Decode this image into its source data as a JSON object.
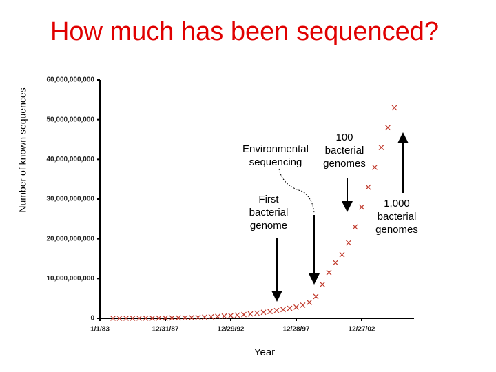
{
  "chart_data": {
    "type": "scatter",
    "title": "How much has been sequenced?",
    "y_label": "Number of known sequences",
    "x_label": "Year",
    "series": [
      {
        "name": "sequences",
        "color": "#c0392b",
        "x": [
          1984,
          1984.5,
          1985,
          1985.5,
          1986,
          1986.5,
          1987,
          1987.5,
          1988,
          1988.5,
          1989,
          1989.5,
          1990,
          1990.5,
          1991,
          1991.5,
          1992,
          1992.5,
          1993,
          1993.5,
          1994,
          1994.5,
          1995,
          1995.5,
          1996,
          1996.5,
          1997,
          1997.5,
          1998,
          1998.5,
          1999,
          1999.5,
          2000,
          2000.5,
          2001,
          2001.5,
          2002,
          2002.5,
          2003,
          2003.5,
          2004,
          2004.5,
          2005,
          2005.5
        ],
        "values": [
          5000000,
          7000000,
          10000000,
          15000000,
          20000000,
          30000000,
          40000000,
          50000000,
          70000000,
          90000000,
          120000000,
          150000000,
          190000000,
          240000000,
          300000000,
          380000000,
          460000000,
          560000000,
          680000000,
          800000000,
          950000000,
          1100000000,
          1300000000,
          1500000000,
          1700000000,
          1950000000,
          2200000000,
          2500000000,
          2800000000,
          3300000000,
          4000000000,
          5500000000,
          8500000000,
          11500000000,
          14000000000,
          16000000000,
          19000000000,
          23000000000,
          28000000000,
          33000000000,
          38000000000,
          43000000000,
          48000000000,
          53000000000
        ]
      }
    ],
    "xlim": [
      1983,
      2007
    ],
    "xticks": [
      {
        "value": 1983,
        "label": "1/1/83"
      },
      {
        "value": 1988,
        "label": "12/31/87"
      },
      {
        "value": 1993,
        "label": "12/29/92"
      },
      {
        "value": 1998,
        "label": "12/28/97"
      },
      {
        "value": 2003,
        "label": "12/27/02"
      }
    ],
    "ylim": [
      0,
      60000000000
    ],
    "yticks": [
      0,
      {
        "value": 10000000000,
        "label": "10,000,000,000"
      },
      {
        "value": 20000000000,
        "label": "20,000,000,000"
      },
      {
        "value": 30000000000,
        "label": "30,000,000,000"
      },
      {
        "value": 40000000000,
        "label": "40,000,000,000"
      },
      {
        "value": 50000000000,
        "label": "50,000,000,000"
      },
      {
        "value": 60000000000,
        "label": "60,000,000,000"
      }
    ],
    "annotations": [
      {
        "lines": [
          "100",
          "bacterial",
          "genomes"
        ]
      },
      {
        "lines": [
          "Environmental",
          "sequencing"
        ]
      },
      {
        "lines": [
          "First",
          "bacterial",
          "genome"
        ]
      },
      {
        "lines": [
          "1,000",
          "bacterial",
          "genomes"
        ]
      }
    ]
  }
}
